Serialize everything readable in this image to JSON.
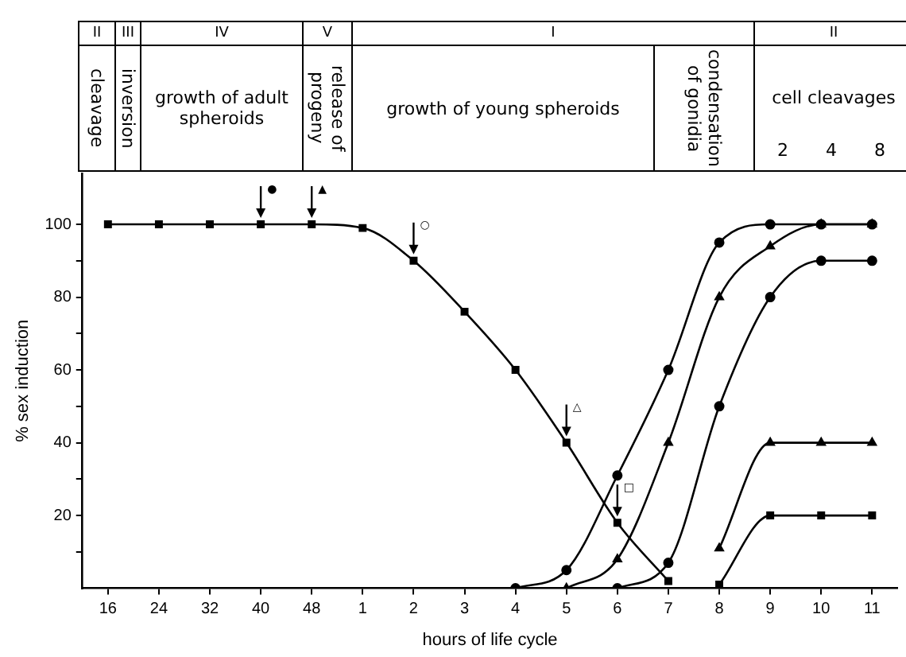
{
  "chart_data": {
    "type": "line",
    "xlabel": "hours of life cycle",
    "ylabel": "% sex induction",
    "categories": [
      "16",
      "24",
      "32",
      "40",
      "48",
      "1",
      "2",
      "3",
      "4",
      "5",
      "6",
      "7",
      "8",
      "9",
      "10",
      "11"
    ],
    "series": [
      {
        "color": "#000000",
        "marker": "square",
        "values": [
          100,
          100,
          100,
          100,
          100,
          99,
          90,
          76,
          60,
          40,
          18,
          2,
          null,
          null,
          null,
          null
        ]
      },
      {
        "color": "#000000",
        "marker": "circle",
        "values": [
          null,
          null,
          null,
          null,
          null,
          null,
          null,
          null,
          0,
          5,
          31,
          60,
          95,
          100,
          100,
          100
        ]
      },
      {
        "color": "#000000",
        "marker": "triangle",
        "values": [
          null,
          null,
          null,
          null,
          null,
          null,
          null,
          null,
          null,
          0,
          8,
          40,
          80,
          94,
          100,
          100
        ]
      },
      {
        "color": "#000000",
        "marker": "circle",
        "values": [
          null,
          null,
          null,
          null,
          null,
          null,
          null,
          null,
          null,
          null,
          0,
          7,
          50,
          80,
          90,
          90
        ]
      },
      {
        "color": "#000000",
        "marker": "triangle",
        "values": [
          null,
          null,
          null,
          null,
          null,
          null,
          null,
          null,
          null,
          null,
          null,
          null,
          11,
          40,
          40,
          40
        ]
      },
      {
        "color": "#000000",
        "marker": "square",
        "values": [
          null,
          null,
          null,
          null,
          null,
          null,
          null,
          null,
          null,
          null,
          null,
          null,
          1,
          20,
          20,
          20
        ]
      }
    ],
    "ylim": [
      0,
      114
    ],
    "yticks": [
      {
        "value": 10,
        "label": null
      },
      20,
      {
        "value": 30,
        "label": null
      },
      40,
      {
        "value": 50,
        "label": null
      },
      60,
      {
        "value": 70,
        "label": null
      },
      80,
      {
        "value": 90,
        "label": null
      },
      100
    ],
    "grid": false,
    "legend": false,
    "line_style": "solid",
    "annotations": [
      {
        "text": "●",
        "x": "40",
        "y": 100
      },
      {
        "text": "▲",
        "x": "48",
        "y": 100
      },
      {
        "text": "○",
        "x": "2",
        "y": 90
      },
      {
        "text": "△",
        "x": "5",
        "y": 40
      },
      {
        "text": "□",
        "x": "6",
        "y": 18
      },
      "II",
      "III",
      "IV",
      "V",
      "I",
      "II",
      "cleavage",
      "inversion",
      "growth of adult spheroids",
      "release of progeny",
      "growth of young spheroids",
      "condensation of gonidia",
      "cell cleavages",
      "2 4 8"
    ]
  }
}
